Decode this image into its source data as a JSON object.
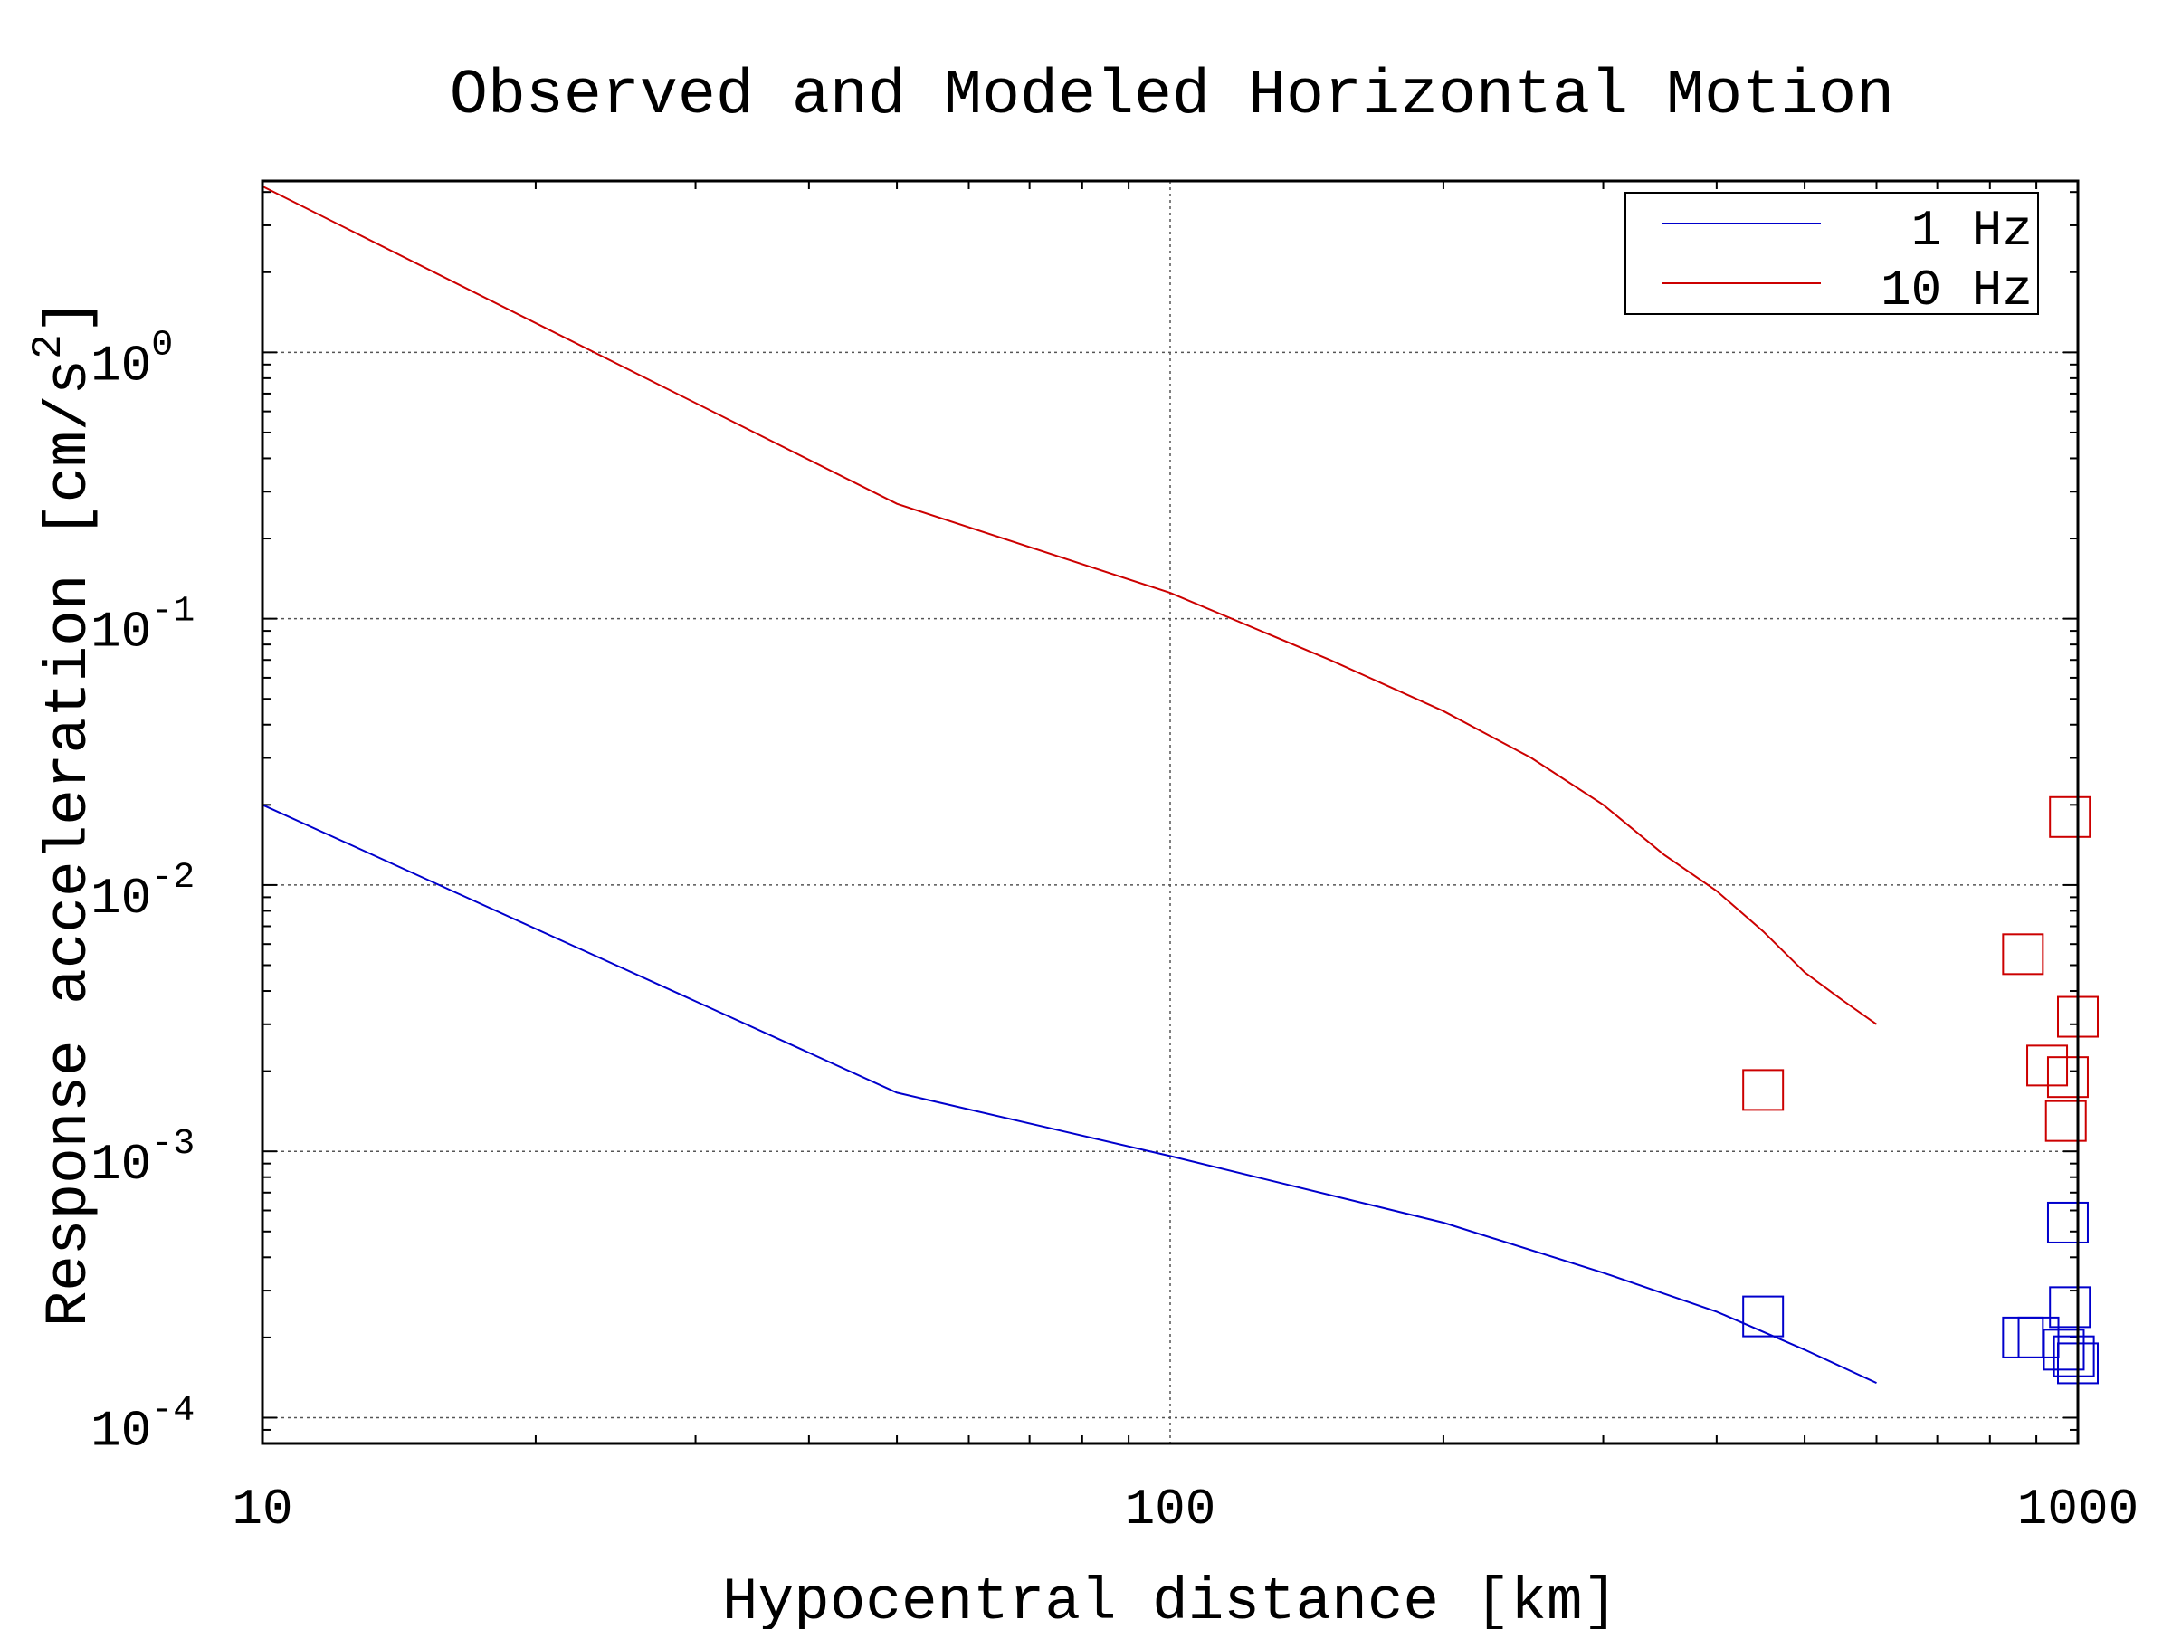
{
  "chart_data": {
    "type": "line",
    "title": "Observed and Modeled Horizontal Motion",
    "xlabel": "Hypocentral distance [km]",
    "ylabel_main": "Response acceleration [cm/s",
    "ylabel_sup": "2",
    "ylabel_end": "]",
    "xscale": "log",
    "yscale": "log",
    "xlim": [
      10,
      1000
    ],
    "ylim": [
      8e-05,
      4.4
    ],
    "grid": true,
    "legend_position": "top-right",
    "x_ticks": [
      {
        "value": 10,
        "label": "10"
      },
      {
        "value": 100,
        "label": "100"
      },
      {
        "value": 1000,
        "label": "1000"
      }
    ],
    "y_ticks": [
      {
        "value": 1,
        "base": "10",
        "exp": "0"
      },
      {
        "value": 0.1,
        "base": "10",
        "exp": "-1"
      },
      {
        "value": 0.01,
        "base": "10",
        "exp": "-2"
      },
      {
        "value": 0.001,
        "base": "10",
        "exp": "-3"
      },
      {
        "value": 0.0001,
        "base": "10",
        "exp": "-4"
      }
    ],
    "series": [
      {
        "name": "1 Hz",
        "legend_label": "1 Hz",
        "color": "#0000cc",
        "x": [
          10,
          50,
          100,
          200,
          300,
          400,
          500,
          600
        ],
        "y": [
          0.02,
          0.00166,
          0.00096,
          0.00054,
          0.00035,
          0.00025,
          0.00018,
          0.000135
        ]
      },
      {
        "name": "10 Hz",
        "legend_label": "10 Hz",
        "color": "#cc0000",
        "x": [
          10,
          50,
          100,
          150,
          200,
          250,
          300,
          350,
          400,
          450,
          500,
          550,
          600
        ],
        "y": [
          4.2,
          0.27,
          0.125,
          0.07,
          0.045,
          0.03,
          0.02,
          0.013,
          0.0095,
          0.0067,
          0.0047,
          0.0037,
          0.003
        ]
      }
    ],
    "observed": [
      {
        "color": "#cc0000",
        "points": [
          {
            "x": 450,
            "y": 0.0017
          },
          {
            "x": 870,
            "y": 0.0055
          },
          {
            "x": 925,
            "y": 0.0021
          },
          {
            "x": 980,
            "y": 0.018
          },
          {
            "x": 975,
            "y": 0.0019
          },
          {
            "x": 970,
            "y": 0.0013
          },
          {
            "x": 1000,
            "y": 0.0032
          }
        ]
      },
      {
        "color": "#0000cc",
        "points": [
          {
            "x": 450,
            "y": 0.00024
          },
          {
            "x": 870,
            "y": 0.0002
          },
          {
            "x": 905,
            "y": 0.0002
          },
          {
            "x": 975,
            "y": 0.00054
          },
          {
            "x": 980,
            "y": 0.00026
          },
          {
            "x": 965,
            "y": 0.00018
          },
          {
            "x": 990,
            "y": 0.00017
          },
          {
            "x": 1000,
            "y": 0.00016
          }
        ]
      }
    ]
  }
}
